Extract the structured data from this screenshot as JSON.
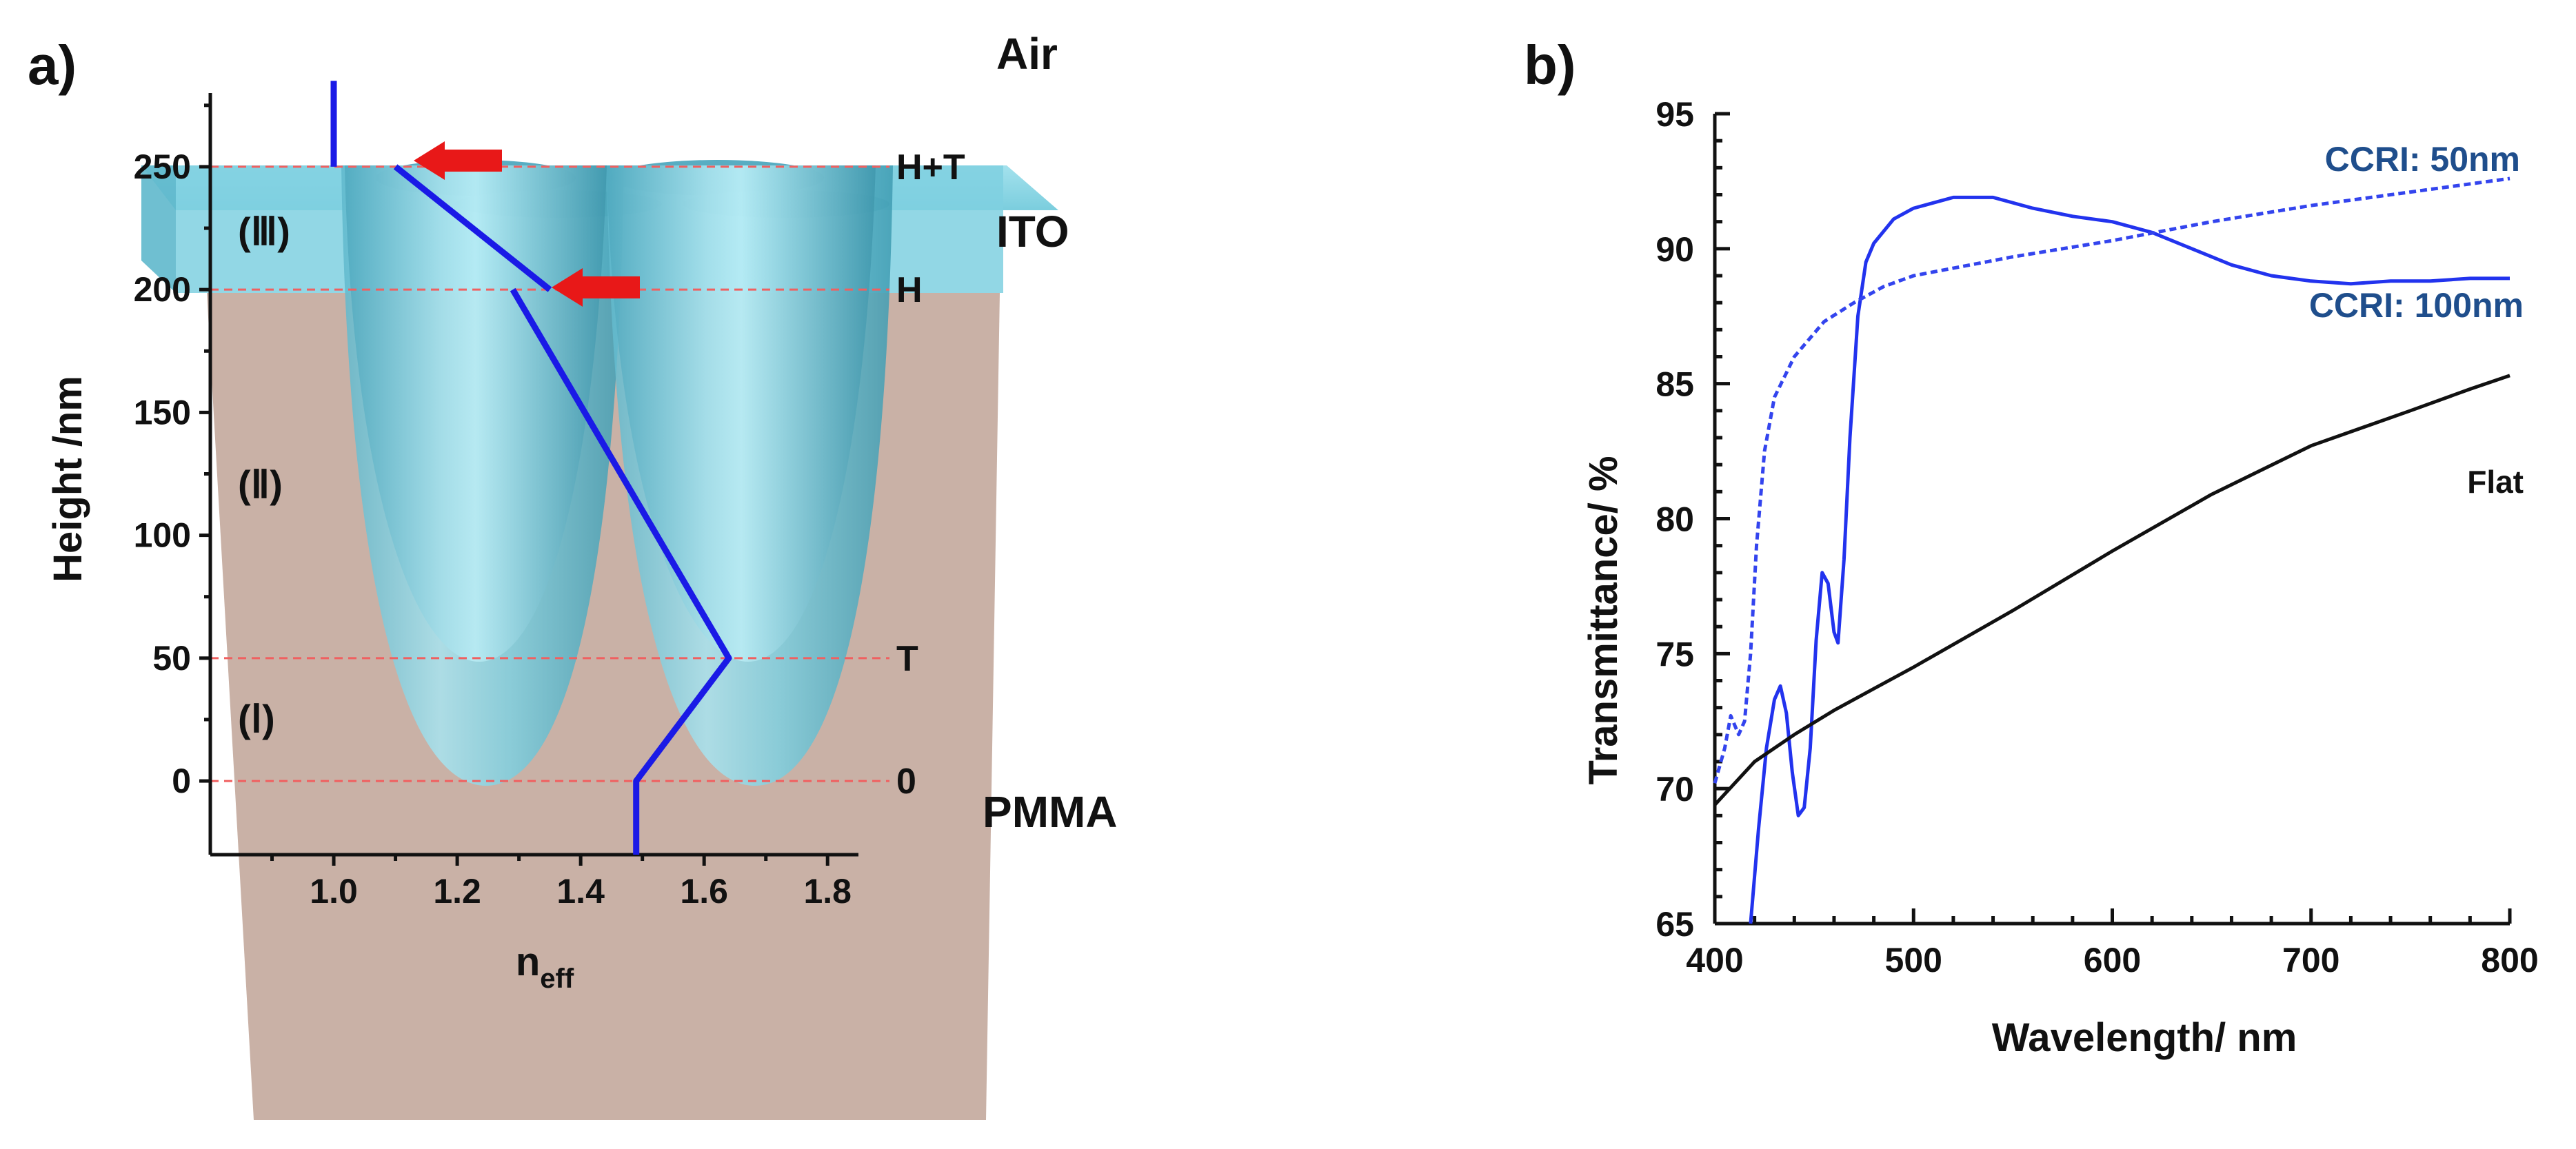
{
  "colors": {
    "ito": "#7fd0e0",
    "ito_dark": "#4fb2c8",
    "pmma": "#c9b1a6",
    "index_line": "#1a1ae6",
    "arrow": "#e81818",
    "dashed_level": "#f06060",
    "ccri100": "#2233ee",
    "ccri50": "#3344ee",
    "flat": "#111111",
    "annotation_blue": "#1f4e8c"
  },
  "panel_a": {
    "label": "a)",
    "regions": {
      "air": "Air",
      "ito": "ITO",
      "pmma": "PMMA"
    },
    "zones": [
      "(Ⅰ)",
      "(Ⅱ)",
      "(Ⅲ)"
    ],
    "level_labels": [
      "H+T",
      "H",
      "T",
      "0"
    ],
    "arrow_icons": [
      "arrow-left-icon",
      "arrow-left-icon"
    ]
  },
  "panel_b": {
    "label": "b)"
  },
  "chart_data": [
    {
      "type": "line",
      "xlabel_main": "n",
      "xlabel_sub": "eff",
      "ylabel": "Height /nm",
      "xlim": [
        0.8,
        1.85
      ],
      "ylim": [
        -30,
        280
      ],
      "x_ticks": [
        "1.0",
        "1.2",
        "1.4",
        "1.6",
        "1.8"
      ],
      "y_ticks": [
        "0",
        "50",
        "100",
        "150",
        "200",
        "250"
      ],
      "level_lines": [
        250,
        200,
        50,
        0
      ],
      "series": [
        {
          "points": [
            [
              1.0,
              285
            ],
            [
              1.0,
              250
            ]
          ]
        },
        {
          "points": [
            [
              1.1,
              250
            ],
            [
              1.35,
              200
            ]
          ]
        },
        {
          "points": [
            [
              1.29,
              200
            ],
            [
              1.64,
              50
            ],
            [
              1.49,
              0
            ],
            [
              1.49,
              -30
            ]
          ]
        }
      ]
    },
    {
      "type": "line",
      "xlabel": "Wavelength/ nm",
      "ylabel": "Transmittance/ %",
      "xlim": [
        400,
        800
      ],
      "ylim": [
        65,
        95
      ],
      "x_ticks": [
        "400",
        "500",
        "600",
        "700",
        "800"
      ],
      "y_ticks": [
        "65",
        "70",
        "75",
        "80",
        "85",
        "90",
        "95"
      ],
      "series_labels": [
        "CCRI: 50nm",
        "CCRI: 100nm",
        "Flat"
      ],
      "series": [
        {
          "label_index": 1,
          "style": "solid",
          "points": [
            [
              418,
              65
            ],
            [
              422,
              68.5
            ],
            [
              426,
              71.5
            ],
            [
              430,
              73.3
            ],
            [
              433,
              73.8
            ],
            [
              436,
              72.8
            ],
            [
              439,
              70.6
            ],
            [
              442,
              69.0
            ],
            [
              445,
              69.3
            ],
            [
              448,
              71.5
            ],
            [
              451,
              75.5
            ],
            [
              454,
              78.0
            ],
            [
              457,
              77.6
            ],
            [
              460,
              75.8
            ],
            [
              462,
              75.4
            ],
            [
              465,
              78.5
            ],
            [
              468,
              83.0
            ],
            [
              472,
              87.5
            ],
            [
              476,
              89.5
            ],
            [
              480,
              90.2
            ],
            [
              490,
              91.1
            ],
            [
              500,
              91.5
            ],
            [
              520,
              91.9
            ],
            [
              540,
              91.9
            ],
            [
              560,
              91.5
            ],
            [
              580,
              91.2
            ],
            [
              600,
              91.0
            ],
            [
              620,
              90.6
            ],
            [
              640,
              90.0
            ],
            [
              660,
              89.4
            ],
            [
              680,
              89.0
            ],
            [
              700,
              88.8
            ],
            [
              720,
              88.7
            ],
            [
              740,
              88.8
            ],
            [
              760,
              88.8
            ],
            [
              780,
              88.9
            ],
            [
              800,
              88.9
            ]
          ]
        },
        {
          "label_index": 0,
          "style": "dashed",
          "points": [
            [
              400,
              70.2
            ],
            [
              405,
              71.5
            ],
            [
              408,
              72.7
            ],
            [
              412,
              72.0
            ],
            [
              415,
              72.5
            ],
            [
              418,
              75.0
            ],
            [
              421,
              79.0
            ],
            [
              425,
              82.5
            ],
            [
              430,
              84.5
            ],
            [
              440,
              86.0
            ],
            [
              455,
              87.3
            ],
            [
              470,
              88.0
            ],
            [
              485,
              88.6
            ],
            [
              500,
              89.0
            ],
            [
              550,
              89.7
            ],
            [
              600,
              90.3
            ],
            [
              650,
              91.0
            ],
            [
              700,
              91.6
            ],
            [
              750,
              92.1
            ],
            [
              800,
              92.6
            ]
          ]
        },
        {
          "label_index": 2,
          "style": "solid",
          "points": [
            [
              400,
              69.4
            ],
            [
              420,
              71.0
            ],
            [
              440,
              72.0
            ],
            [
              460,
              72.9
            ],
            [
              480,
              73.7
            ],
            [
              500,
              74.5
            ],
            [
              550,
              76.6
            ],
            [
              600,
              78.8
            ],
            [
              650,
              80.9
            ],
            [
              700,
              82.7
            ],
            [
              750,
              84.0
            ],
            [
              780,
              84.8
            ],
            [
              800,
              85.3
            ]
          ]
        }
      ]
    }
  ]
}
